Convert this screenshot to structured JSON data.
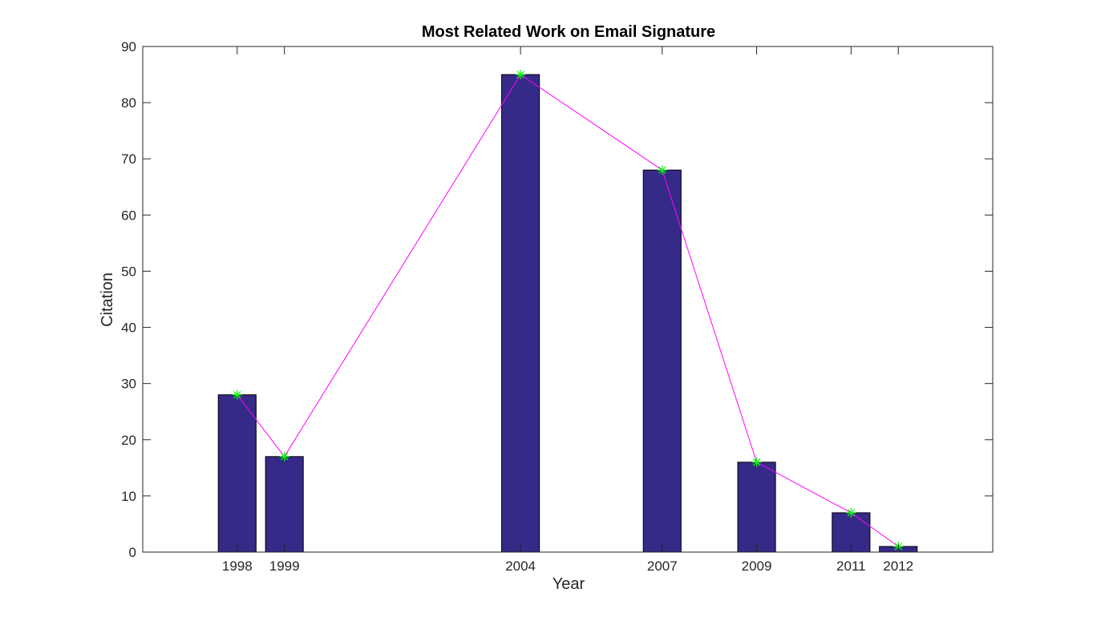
{
  "chart_data": {
    "type": "bar",
    "title": "Most Related Work on Email Signature",
    "xlabel": "Year",
    "ylabel": "Citation",
    "x": [
      1998,
      1999,
      2004,
      2007,
      2009,
      2011,
      2012
    ],
    "x_tick_labels": [
      "1998",
      "1999",
      "2004",
      "2007",
      "2009",
      "2011",
      "2012"
    ],
    "values": [
      28,
      17,
      85,
      68,
      16,
      7,
      1
    ],
    "xlim": [
      1996,
      2014
    ],
    "ylim": [
      0,
      90
    ],
    "y_ticks": [
      0,
      10,
      20,
      30,
      40,
      50,
      60,
      70,
      80,
      90
    ],
    "grid": false,
    "bar_color": "#352A87",
    "line_color": "#FF00FF",
    "marker_color": "#00FF00",
    "marker": "asterisk",
    "overlay": "line connecting bar tops"
  }
}
